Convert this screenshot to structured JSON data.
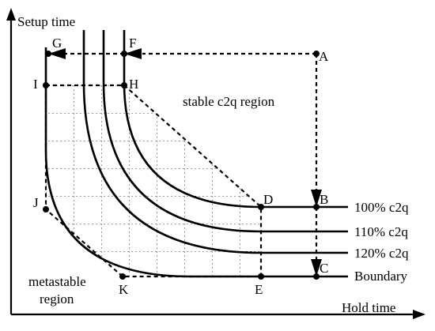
{
  "axes": {
    "y_label": "Setup time",
    "x_label": "Hold time"
  },
  "regions": {
    "stable": "stable c2q region",
    "metastable_line1": "metastable",
    "metastable_line2": "region"
  },
  "points": {
    "A": "A",
    "B": "B",
    "C": "C",
    "D": "D",
    "E": "E",
    "F": "F",
    "G": "G",
    "H": "H",
    "I": "I",
    "J": "J",
    "K": "K"
  },
  "curves": {
    "c100": "100% c2q",
    "c110": "110% c2q",
    "c120": "120% c2q",
    "boundary": "Boundary"
  }
}
